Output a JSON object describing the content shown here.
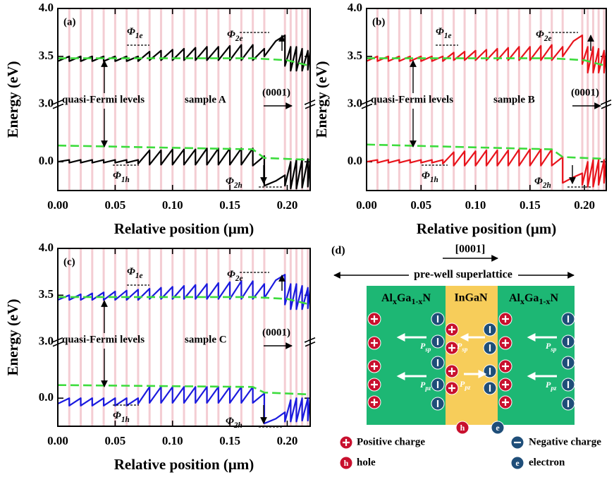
{
  "chart_data": [
    {
      "type": "line",
      "x_label": "Relative position (μm)",
      "y_label": "Energy (eV)",
      "xlim": [
        0,
        0.22
      ],
      "xticks": [
        {
          "value": 0,
          "label": "0.00"
        },
        {
          "value": 0.05,
          "label": "0.05"
        },
        {
          "value": 0.1,
          "label": "0.10"
        },
        {
          "value": 0.15,
          "label": "0.15"
        },
        {
          "value": 0.2,
          "label": "0.20"
        }
      ],
      "ylim": [
        -0.3,
        4.0
      ],
      "y_break": [
        0.6,
        3.0
      ],
      "yticks": [
        {
          "value": 0,
          "label": "0.0"
        },
        {
          "value": 3,
          "label": "3.0"
        },
        {
          "value": 3.5,
          "label": "3.5"
        },
        {
          "value": 4,
          "label": "4.0"
        }
      ],
      "x": [
        0,
        0.01,
        0.01,
        0.02,
        0.02,
        0.03,
        0.03,
        0.04,
        0.04,
        0.05,
        0.05,
        0.06,
        0.06,
        0.07,
        0.07,
        0.08,
        0.08,
        0.09,
        0.09,
        0.1,
        0.1,
        0.11,
        0.11,
        0.12,
        0.12,
        0.13,
        0.13,
        0.14,
        0.14,
        0.15,
        0.15,
        0.16,
        0.16,
        0.17,
        0.17,
        0.18,
        0.18,
        0.19,
        0.198,
        0.198,
        0.203,
        0.203,
        0.208,
        0.208,
        0.213,
        0.213,
        0.218,
        0.218,
        0.22
      ],
      "series": [
        {
          "color": "#000000",
          "values": [
            3.45,
            3.5,
            3.45,
            3.5,
            3.45,
            3.5,
            3.45,
            3.5,
            3.45,
            3.5,
            3.45,
            3.5,
            3.45,
            3.5,
            3.45,
            3.55,
            3.46,
            3.56,
            3.46,
            3.57,
            3.46,
            3.58,
            3.46,
            3.59,
            3.46,
            3.6,
            3.46,
            3.6,
            3.46,
            3.61,
            3.46,
            3.62,
            3.46,
            3.62,
            3.46,
            3.58,
            3.5,
            3.66,
            3.72,
            3.4,
            3.6,
            3.35,
            3.6,
            3.35,
            3.58,
            3.35,
            3.56,
            3.36,
            3.55
          ]
        },
        {
          "color": "#000000",
          "values": [
            0,
            0.02,
            -0.01,
            0.02,
            -0.01,
            0.02,
            -0.01,
            0.02,
            -0.01,
            0.02,
            -0.01,
            0.02,
            -0.01,
            0.02,
            -0.02,
            0.12,
            -0.03,
            0.12,
            -0.03,
            0.13,
            -0.03,
            0.13,
            -0.03,
            0.13,
            -0.03,
            0.14,
            -0.03,
            0.14,
            -0.03,
            0.14,
            -0.03,
            0.14,
            -0.03,
            0.14,
            -0.04,
            0.06,
            -0.25,
            -0.2,
            -0.14,
            -0.25,
            0,
            -0.28,
            0.02,
            -0.28,
            0.03,
            -0.27,
            0.03,
            -0.26,
            0.03
          ]
        },
        {
          "color": "#3ddc3d",
          "dashed": true,
          "x": [
            0,
            0.17,
            0.2,
            0.22
          ],
          "values": [
            3.48,
            3.48,
            3.46,
            3.4
          ]
        },
        {
          "color": "#3ddc3d",
          "dashed": true,
          "x": [
            0,
            0.17,
            0.18,
            0.22
          ],
          "values": [
            0.17,
            0.13,
            0.04,
            0.02
          ]
        }
      ],
      "annotations": [
        "(a)",
        [
          "Φ",
          "1e"
        ],
        [
          "Φ",
          "2e"
        ],
        [
          "Φ",
          "1h"
        ],
        [
          "Φ",
          "2h"
        ],
        "quasi-Fermi levels",
        "sample A",
        "(0001)"
      ]
    },
    {
      "type": "line",
      "x_label": "Relative position (μm)",
      "y_label": "Energy (eV)",
      "xlim": [
        0,
        0.22
      ],
      "xticks": [
        {
          "value": 0,
          "label": "0.00"
        },
        {
          "value": 0.05,
          "label": "0.05"
        },
        {
          "value": 0.1,
          "label": "0.10"
        },
        {
          "value": 0.15,
          "label": "0.15"
        },
        {
          "value": 0.2,
          "label": "0.20"
        }
      ],
      "ylim": [
        -0.3,
        4.0
      ],
      "y_break": [
        0.6,
        3.0
      ],
      "yticks": [
        {
          "value": 0,
          "label": "0.0"
        },
        {
          "value": 3,
          "label": "3.0"
        },
        {
          "value": 3.5,
          "label": "3.5"
        },
        {
          "value": 4,
          "label": "4.0"
        }
      ],
      "x": [
        0,
        0.01,
        0.01,
        0.02,
        0.02,
        0.03,
        0.03,
        0.04,
        0.04,
        0.05,
        0.05,
        0.06,
        0.06,
        0.07,
        0.07,
        0.08,
        0.08,
        0.09,
        0.09,
        0.1,
        0.1,
        0.11,
        0.11,
        0.12,
        0.12,
        0.13,
        0.13,
        0.14,
        0.14,
        0.15,
        0.15,
        0.16,
        0.16,
        0.17,
        0.17,
        0.18,
        0.18,
        0.19,
        0.198,
        0.198,
        0.203,
        0.203,
        0.208,
        0.208,
        0.213,
        0.213,
        0.218,
        0.218,
        0.22
      ],
      "series": [
        {
          "color": "#e8141c",
          "values": [
            3.45,
            3.5,
            3.45,
            3.5,
            3.45,
            3.5,
            3.45,
            3.5,
            3.45,
            3.5,
            3.45,
            3.5,
            3.45,
            3.5,
            3.45,
            3.54,
            3.46,
            3.55,
            3.46,
            3.56,
            3.46,
            3.57,
            3.46,
            3.58,
            3.46,
            3.59,
            3.46,
            3.6,
            3.46,
            3.6,
            3.46,
            3.61,
            3.46,
            3.62,
            3.46,
            3.6,
            3.5,
            3.66,
            3.72,
            3.42,
            3.6,
            3.33,
            3.6,
            3.33,
            3.58,
            3.33,
            3.56,
            3.33,
            3.55
          ]
        },
        {
          "color": "#e8141c",
          "values": [
            0,
            0.02,
            -0.01,
            0.02,
            -0.01,
            0.02,
            -0.01,
            0.02,
            -0.01,
            0.02,
            -0.01,
            0.02,
            -0.01,
            0.02,
            -0.02,
            0.1,
            -0.04,
            0.11,
            -0.04,
            0.11,
            -0.04,
            0.12,
            -0.04,
            0.12,
            -0.04,
            0.12,
            -0.04,
            0.13,
            -0.04,
            0.13,
            -0.04,
            0.13,
            -0.04,
            0.13,
            -0.04,
            0.05,
            -0.22,
            -0.16,
            -0.12,
            -0.24,
            0,
            -0.26,
            0.02,
            -0.26,
            0.02,
            -0.24,
            0.02,
            -0.22,
            0.02
          ]
        },
        {
          "color": "#3ddc3d",
          "dashed": true,
          "x": [
            0,
            0.17,
            0.2,
            0.22
          ],
          "values": [
            3.48,
            3.48,
            3.46,
            3.4
          ]
        },
        {
          "color": "#3ddc3d",
          "dashed": true,
          "x": [
            0,
            0.17,
            0.18,
            0.22
          ],
          "values": [
            0.18,
            0.13,
            0.05,
            0.03
          ]
        }
      ],
      "annotations": [
        "(b)",
        [
          "Φ",
          "1e"
        ],
        [
          "Φ",
          "2e"
        ],
        [
          "Φ",
          "1h"
        ],
        [
          "Φ",
          "2h"
        ],
        "quasi-Fermi levels",
        "sample B",
        "(0001)"
      ]
    },
    {
      "type": "line",
      "x_label": "Relative position (μm)",
      "y_label": "Energy (eV)",
      "xlim": [
        0,
        0.22
      ],
      "xticks": [
        {
          "value": 0,
          "label": "0.00"
        },
        {
          "value": 0.05,
          "label": "0.05"
        },
        {
          "value": 0.1,
          "label": "0.10"
        },
        {
          "value": 0.15,
          "label": "0.15"
        },
        {
          "value": 0.2,
          "label": "0.20"
        }
      ],
      "ylim": [
        -0.3,
        4.0
      ],
      "y_break": [
        0.6,
        3.0
      ],
      "yticks": [
        {
          "value": 0,
          "label": "0.0"
        },
        {
          "value": 3,
          "label": "3.0"
        },
        {
          "value": 3.5,
          "label": "3.5"
        },
        {
          "value": 4,
          "label": "4.0"
        }
      ],
      "x": [
        0,
        0.01,
        0.01,
        0.02,
        0.02,
        0.03,
        0.03,
        0.04,
        0.04,
        0.05,
        0.05,
        0.06,
        0.06,
        0.07,
        0.07,
        0.08,
        0.08,
        0.09,
        0.09,
        0.1,
        0.1,
        0.11,
        0.11,
        0.12,
        0.12,
        0.13,
        0.13,
        0.14,
        0.14,
        0.15,
        0.15,
        0.16,
        0.16,
        0.17,
        0.17,
        0.18,
        0.18,
        0.19,
        0.198,
        0.198,
        0.203,
        0.203,
        0.208,
        0.208,
        0.213,
        0.213,
        0.218,
        0.218,
        0.22
      ],
      "series": [
        {
          "color": "#1a1adf",
          "values": [
            3.45,
            3.5,
            3.45,
            3.51,
            3.45,
            3.52,
            3.45,
            3.53,
            3.45,
            3.54,
            3.45,
            3.55,
            3.45,
            3.56,
            3.45,
            3.57,
            3.46,
            3.58,
            3.46,
            3.59,
            3.46,
            3.6,
            3.46,
            3.61,
            3.46,
            3.62,
            3.46,
            3.63,
            3.46,
            3.64,
            3.46,
            3.65,
            3.46,
            3.65,
            3.46,
            3.62,
            3.47,
            3.66,
            3.72,
            3.4,
            3.62,
            3.35,
            3.62,
            3.35,
            3.6,
            3.35,
            3.58,
            3.36,
            3.56
          ]
        },
        {
          "color": "#1a1adf",
          "values": [
            -0.06,
            0,
            -0.08,
            0,
            -0.08,
            0,
            -0.08,
            0,
            -0.08,
            0,
            -0.08,
            0,
            -0.08,
            0,
            -0.06,
            0.12,
            -0.05,
            0.12,
            -0.05,
            0.12,
            -0.05,
            0.12,
            -0.05,
            0.12,
            -0.05,
            0.12,
            -0.05,
            0.12,
            -0.05,
            0.12,
            -0.05,
            0.12,
            -0.05,
            0.12,
            -0.05,
            0.05,
            -0.27,
            -0.22,
            -0.15,
            -0.25,
            -0.02,
            -0.25,
            0,
            -0.25,
            0,
            -0.24,
            0,
            -0.24,
            0
          ]
        },
        {
          "color": "#3ddc3d",
          "dashed": true,
          "x": [
            0,
            0.17,
            0.2,
            0.22
          ],
          "values": [
            3.48,
            3.48,
            3.46,
            3.4
          ]
        },
        {
          "color": "#3ddc3d",
          "dashed": true,
          "x": [
            0,
            0.17,
            0.18,
            0.22
          ],
          "values": [
            0.14,
            0.12,
            0.06,
            0.04
          ]
        }
      ],
      "annotations": [
        "(c)",
        [
          "Φ",
          "1e"
        ],
        [
          "Φ",
          "2e"
        ],
        [
          "Φ",
          "1h"
        ],
        [
          "Φ",
          "2h"
        ],
        "quasi-Fermi levels",
        "sample C",
        "(0001)"
      ]
    }
  ],
  "schematic": {
    "panel_label": "(d)",
    "direction": "[0001]",
    "span_label": "pre-well superlattice",
    "layers": [
      [
        "Al",
        "x",
        "Ga",
        "1-x",
        "N"
      ],
      "InGaN",
      [
        "Al",
        "x",
        "Ga",
        "1-x",
        "N"
      ]
    ],
    "polarization": [
      [
        "P",
        "sp"
      ],
      [
        "P",
        "pz"
      ],
      [
        "P",
        "sp"
      ],
      [
        "P",
        "pz"
      ],
      [
        "P",
        "sp"
      ],
      [
        "P",
        "pz"
      ]
    ],
    "carriers": [
      "h",
      "e"
    ],
    "legend_symbols": [
      "h",
      "e"
    ],
    "legend": [
      "Positive charge",
      "Negative charge",
      "hole",
      "electron"
    ]
  }
}
